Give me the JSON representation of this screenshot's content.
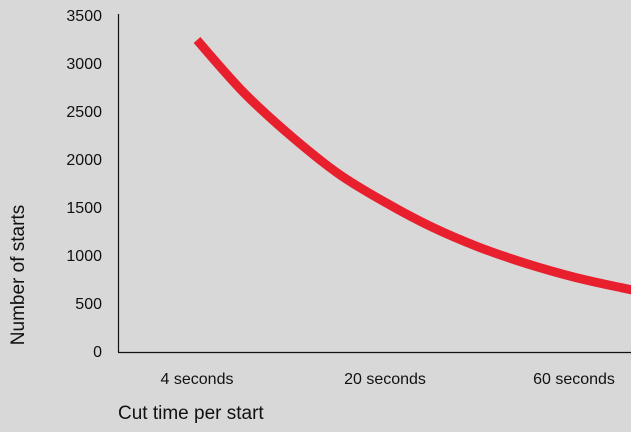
{
  "chart_data": {
    "type": "line",
    "title": "",
    "xlabel": "Cut time per start",
    "ylabel": "Number of starts",
    "categories": [
      "4 seconds",
      "20 seconds",
      "60 seconds"
    ],
    "series": [
      {
        "x": [
          0,
          0.25,
          0.5,
          0.75,
          1,
          1.25,
          1.5,
          1.75,
          2,
          2.25,
          2.4
        ],
        "values": [
          3250,
          2700,
          2250,
          1860,
          1560,
          1300,
          1090,
          920,
          780,
          670,
          610
        ],
        "color": "#e8202e"
      }
    ],
    "ylim": [
      0,
      3500
    ],
    "yticks": [
      0,
      500,
      1000,
      1500,
      2000,
      2500,
      3000,
      3500
    ],
    "grid": false,
    "legend": "none"
  }
}
